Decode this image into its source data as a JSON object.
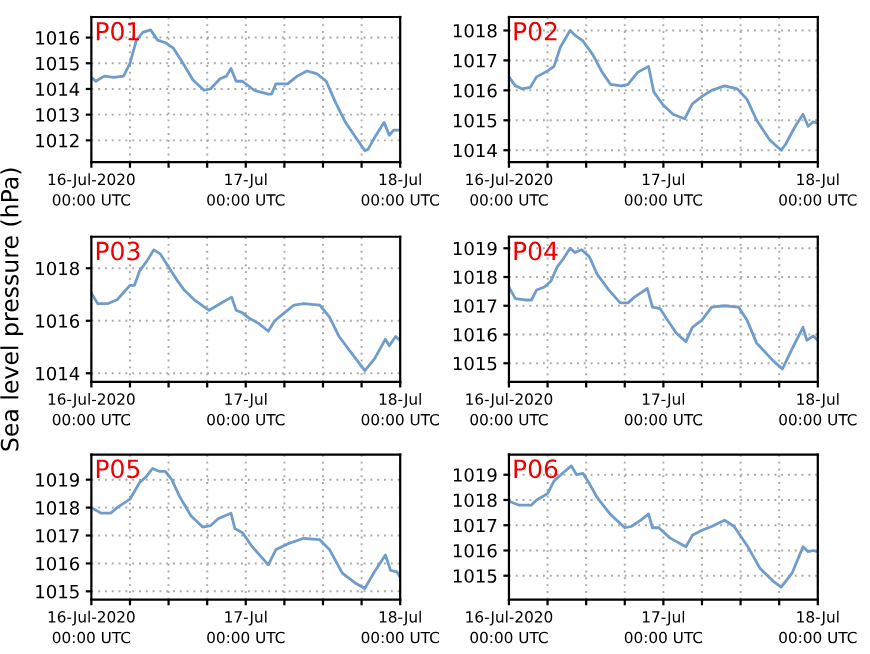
{
  "chart_data": [
    {
      "type": "line",
      "title": "P01",
      "x": [
        "2020-07-16T00:00",
        "2020-07-16T00:42",
        "2020-07-16T02:00",
        "2020-07-16T03:30",
        "2020-07-16T05:00",
        "2020-07-16T06:00",
        "2020-07-16T07:00",
        "2020-07-16T08:00",
        "2020-07-16T09:12",
        "2020-07-16T10:18",
        "2020-07-16T11:30",
        "2020-07-16T12:42",
        "2020-07-16T14:00",
        "2020-07-16T15:48",
        "2020-07-16T17:30",
        "2020-07-16T18:30",
        "2020-07-16T20:00",
        "2020-07-16T21:00",
        "2020-07-16T21:42",
        "2020-07-16T22:30",
        "2020-07-16T23:30",
        "2020-07-17T01:18",
        "2020-07-17T03:30",
        "2020-07-17T04:00",
        "2020-07-17T04:42",
        "2020-07-17T06:30",
        "2020-07-17T08:00",
        "2020-07-17T09:30",
        "2020-07-17T11:00",
        "2020-07-17T12:30",
        "2020-07-17T14:00",
        "2020-07-17T15:30",
        "2020-07-17T17:00",
        "2020-07-17T18:30",
        "2020-07-17T19:00",
        "2020-07-17T20:00",
        "2020-07-17T21:30",
        "2020-07-17T22:18",
        "2020-07-17T23:00",
        "2020-07-18T00:00"
      ],
      "series": [
        {
          "color": "#6f9ccb",
          "values": [
            1014.45,
            1014.3,
            1014.5,
            1014.45,
            1014.5,
            1015.0,
            1015.9,
            1016.2,
            1016.3,
            1015.9,
            1015.8,
            1015.6,
            1015.1,
            1014.35,
            1013.95,
            1014.0,
            1014.4,
            1014.5,
            1014.8,
            1014.3,
            1014.3,
            1013.95,
            1013.8,
            1013.8,
            1014.2,
            1014.2,
            1014.5,
            1014.7,
            1014.6,
            1014.3,
            1013.45,
            1012.7,
            1012.15,
            1011.6,
            1011.65,
            1012.1,
            1012.7,
            1012.2,
            1012.4,
            1012.4
          ]
        }
      ],
      "xlim": [
        "2020-07-16T00:00",
        "2020-07-18T00:00"
      ],
      "xticks": [
        {
          "value": "2020-07-16T00:00",
          "label": "16-Jul-2020\n00:00 UTC"
        },
        {
          "value": "2020-07-16T06:00",
          "label": null
        },
        {
          "value": "2020-07-16T12:00",
          "label": null
        },
        {
          "value": "2020-07-16T18:00",
          "label": null
        },
        {
          "value": "2020-07-17T00:00",
          "label": "17-Jul\n00:00 UTC"
        },
        {
          "value": "2020-07-17T06:00",
          "label": null
        },
        {
          "value": "2020-07-17T12:00",
          "label": null
        },
        {
          "value": "2020-07-17T18:00",
          "label": null
        },
        {
          "value": "2020-07-18T00:00",
          "label": "18-Jul\n00:00 UTC"
        }
      ],
      "ylim": [
        1011.15,
        1016.8
      ],
      "yticks": [
        1012,
        1013,
        1014,
        1015,
        1016
      ],
      "grid": true,
      "line_style": "solid"
    },
    {
      "type": "line",
      "title": "P02",
      "x": [
        "2020-07-16T00:00",
        "2020-07-16T01:00",
        "2020-07-16T02:00",
        "2020-07-16T03:18",
        "2020-07-16T04:18",
        "2020-07-16T06:00",
        "2020-07-16T07:00",
        "2020-07-16T08:00",
        "2020-07-16T09:30",
        "2020-07-16T10:30",
        "2020-07-16T11:30",
        "2020-07-16T13:00",
        "2020-07-16T14:30",
        "2020-07-16T15:48",
        "2020-07-16T17:30",
        "2020-07-16T18:30",
        "2020-07-16T20:00",
        "2020-07-16T21:42",
        "2020-07-16T22:30",
        "2020-07-17T00:00",
        "2020-07-17T01:30",
        "2020-07-17T03:18",
        "2020-07-17T04:30",
        "2020-07-17T06:00",
        "2020-07-17T07:30",
        "2020-07-17T09:30",
        "2020-07-17T11:30",
        "2020-07-17T13:00",
        "2020-07-17T14:30",
        "2020-07-17T16:30",
        "2020-07-17T18:18",
        "2020-07-17T19:00",
        "2020-07-17T20:30",
        "2020-07-17T21:42",
        "2020-07-17T22:30",
        "2020-07-17T23:18",
        "2020-07-18T00:00"
      ],
      "series": [
        {
          "color": "#6f9ccb",
          "values": [
            1016.45,
            1016.15,
            1016.05,
            1016.1,
            1016.45,
            1016.65,
            1016.8,
            1017.45,
            1018.0,
            1017.8,
            1017.65,
            1017.2,
            1016.6,
            1016.2,
            1016.15,
            1016.2,
            1016.6,
            1016.8,
            1015.95,
            1015.5,
            1015.2,
            1015.05,
            1015.55,
            1015.8,
            1016.0,
            1016.15,
            1016.05,
            1015.7,
            1015.0,
            1014.35,
            1014.0,
            1014.2,
            1014.8,
            1015.2,
            1014.8,
            1014.95,
            1014.9
          ]
        }
      ],
      "xlim": [
        "2020-07-16T00:00",
        "2020-07-18T00:00"
      ],
      "xticks": [
        {
          "value": "2020-07-16T00:00",
          "label": "16-Jul-2020\n00:00 UTC"
        },
        {
          "value": "2020-07-16T06:00",
          "label": null
        },
        {
          "value": "2020-07-16T12:00",
          "label": null
        },
        {
          "value": "2020-07-16T18:00",
          "label": null
        },
        {
          "value": "2020-07-17T00:00",
          "label": "17-Jul\n00:00 UTC"
        },
        {
          "value": "2020-07-17T06:00",
          "label": null
        },
        {
          "value": "2020-07-17T12:00",
          "label": null
        },
        {
          "value": "2020-07-17T18:00",
          "label": null
        },
        {
          "value": "2020-07-18T00:00",
          "label": "18-Jul\n00:00 UTC"
        }
      ],
      "ylim": [
        1013.6,
        1018.45
      ],
      "yticks": [
        1014,
        1015,
        1016,
        1017,
        1018
      ],
      "grid": true,
      "line_style": "solid"
    },
    {
      "type": "line",
      "title": "P03",
      "ylabel": "Sea level pressure (hPa)",
      "x": [
        "2020-07-16T00:00",
        "2020-07-16T01:00",
        "2020-07-16T02:30",
        "2020-07-16T04:00",
        "2020-07-16T06:00",
        "2020-07-16T06:42",
        "2020-07-16T07:30",
        "2020-07-16T08:42",
        "2020-07-16T09:42",
        "2020-07-16T10:42",
        "2020-07-16T12:00",
        "2020-07-16T13:18",
        "2020-07-16T14:30",
        "2020-07-16T16:00",
        "2020-07-16T18:18",
        "2020-07-16T20:00",
        "2020-07-16T21:48",
        "2020-07-16T22:30",
        "2020-07-16T23:30",
        "2020-07-17T00:30",
        "2020-07-17T02:00",
        "2020-07-17T03:30",
        "2020-07-17T04:30",
        "2020-07-17T06:00",
        "2020-07-17T07:30",
        "2020-07-17T09:00",
        "2020-07-17T11:30",
        "2020-07-17T13:00",
        "2020-07-17T14:30",
        "2020-07-17T16:30",
        "2020-07-17T18:30",
        "2020-07-17T20:00",
        "2020-07-17T21:42",
        "2020-07-17T22:18",
        "2020-07-17T23:18",
        "2020-07-18T00:00"
      ],
      "series": [
        {
          "color": "#6f9ccb",
          "values": [
            1017.05,
            1016.65,
            1016.65,
            1016.8,
            1017.35,
            1017.35,
            1017.9,
            1018.3,
            1018.7,
            1018.55,
            1018.05,
            1017.55,
            1017.15,
            1016.8,
            1016.4,
            1016.65,
            1016.9,
            1016.4,
            1016.3,
            1016.1,
            1015.9,
            1015.6,
            1016.0,
            1016.3,
            1016.6,
            1016.65,
            1016.6,
            1016.15,
            1015.4,
            1014.75,
            1014.1,
            1014.55,
            1015.3,
            1015.05,
            1015.4,
            1015.25
          ]
        }
      ],
      "xlim": [
        "2020-07-16T00:00",
        "2020-07-18T00:00"
      ],
      "xticks": [
        {
          "value": "2020-07-16T00:00",
          "label": "16-Jul-2020\n00:00 UTC"
        },
        {
          "value": "2020-07-16T06:00",
          "label": null
        },
        {
          "value": "2020-07-16T12:00",
          "label": null
        },
        {
          "value": "2020-07-16T18:00",
          "label": null
        },
        {
          "value": "2020-07-17T00:00",
          "label": "17-Jul\n00:00 UTC"
        },
        {
          "value": "2020-07-17T06:00",
          "label": null
        },
        {
          "value": "2020-07-17T12:00",
          "label": null
        },
        {
          "value": "2020-07-17T18:00",
          "label": null
        },
        {
          "value": "2020-07-18T00:00",
          "label": "18-Jul\n00:00 UTC"
        }
      ],
      "ylim": [
        1013.67,
        1019.2
      ],
      "yticks": [
        1014,
        1016,
        1018
      ],
      "grid": true,
      "line_style": "solid"
    },
    {
      "type": "line",
      "title": "P04",
      "x": [
        "2020-07-16T00:00",
        "2020-07-16T01:00",
        "2020-07-16T02:30",
        "2020-07-16T03:30",
        "2020-07-16T04:18",
        "2020-07-16T05:30",
        "2020-07-16T06:30",
        "2020-07-16T07:30",
        "2020-07-16T08:30",
        "2020-07-16T09:30",
        "2020-07-16T10:18",
        "2020-07-16T11:18",
        "2020-07-16T12:30",
        "2020-07-16T13:42",
        "2020-07-16T15:30",
        "2020-07-16T17:18",
        "2020-07-16T18:30",
        "2020-07-16T19:30",
        "2020-07-16T21:30",
        "2020-07-16T22:18",
        "2020-07-16T23:30",
        "2020-07-17T00:30",
        "2020-07-17T02:00",
        "2020-07-17T03:30",
        "2020-07-17T04:30",
        "2020-07-17T06:00",
        "2020-07-17T07:30",
        "2020-07-17T09:30",
        "2020-07-17T11:42",
        "2020-07-17T13:00",
        "2020-07-17T14:30",
        "2020-07-17T17:00",
        "2020-07-17T18:30",
        "2020-07-17T20:00",
        "2020-07-17T21:42",
        "2020-07-17T22:18",
        "2020-07-17T23:18",
        "2020-07-18T00:00"
      ],
      "series": [
        {
          "color": "#6f9ccb",
          "values": [
            1017.65,
            1017.25,
            1017.2,
            1017.2,
            1017.55,
            1017.65,
            1017.85,
            1018.35,
            1018.65,
            1019.0,
            1018.85,
            1018.95,
            1018.7,
            1018.1,
            1017.55,
            1017.1,
            1017.1,
            1017.3,
            1017.6,
            1016.95,
            1016.9,
            1016.55,
            1016.05,
            1015.75,
            1016.25,
            1016.5,
            1016.95,
            1017.0,
            1016.95,
            1016.5,
            1015.7,
            1015.1,
            1014.8,
            1015.5,
            1016.25,
            1015.8,
            1015.95,
            1015.8
          ]
        }
      ],
      "xlim": [
        "2020-07-16T00:00",
        "2020-07-18T00:00"
      ],
      "xticks": [
        {
          "value": "2020-07-16T00:00",
          "label": "16-Jul-2020\n00:00 UTC"
        },
        {
          "value": "2020-07-16T06:00",
          "label": null
        },
        {
          "value": "2020-07-16T12:00",
          "label": null
        },
        {
          "value": "2020-07-16T18:00",
          "label": null
        },
        {
          "value": "2020-07-17T00:00",
          "label": "17-Jul\n00:00 UTC"
        },
        {
          "value": "2020-07-17T06:00",
          "label": null
        },
        {
          "value": "2020-07-17T12:00",
          "label": null
        },
        {
          "value": "2020-07-17T18:00",
          "label": null
        },
        {
          "value": "2020-07-18T00:00",
          "label": "18-Jul\n00:00 UTC"
        }
      ],
      "ylim": [
        1014.35,
        1019.4
      ],
      "yticks": [
        1015,
        1016,
        1017,
        1018,
        1019
      ],
      "grid": true,
      "line_style": "solid"
    },
    {
      "type": "line",
      "title": "P05",
      "x": [
        "2020-07-16T00:00",
        "2020-07-16T01:30",
        "2020-07-16T03:00",
        "2020-07-16T04:00",
        "2020-07-16T06:00",
        "2020-07-16T07:30",
        "2020-07-16T08:30",
        "2020-07-16T09:30",
        "2020-07-16T10:30",
        "2020-07-16T11:30",
        "2020-07-16T12:30",
        "2020-07-16T13:42",
        "2020-07-16T15:30",
        "2020-07-16T17:18",
        "2020-07-16T18:30",
        "2020-07-16T19:42",
        "2020-07-16T21:42",
        "2020-07-16T22:18",
        "2020-07-16T23:30",
        "2020-07-17T01:00",
        "2020-07-17T03:30",
        "2020-07-17T04:42",
        "2020-07-17T06:30",
        "2020-07-17T09:00",
        "2020-07-17T11:30",
        "2020-07-17T13:00",
        "2020-07-17T15:00",
        "2020-07-17T17:00",
        "2020-07-17T18:30",
        "2020-07-17T20:00",
        "2020-07-17T21:42",
        "2020-07-17T22:30",
        "2020-07-17T23:30",
        "2020-07-18T00:00"
      ],
      "series": [
        {
          "color": "#6f9ccb",
          "values": [
            1018.0,
            1017.8,
            1017.8,
            1018.0,
            1018.3,
            1018.9,
            1019.1,
            1019.4,
            1019.3,
            1019.3,
            1019.0,
            1018.4,
            1017.7,
            1017.3,
            1017.35,
            1017.6,
            1017.8,
            1017.25,
            1017.1,
            1016.6,
            1015.95,
            1016.5,
            1016.7,
            1016.9,
            1016.85,
            1016.5,
            1015.65,
            1015.3,
            1015.1,
            1015.7,
            1016.3,
            1015.75,
            1015.7,
            1015.5
          ]
        }
      ],
      "xlim": [
        "2020-07-16T00:00",
        "2020-07-18T00:00"
      ],
      "xticks": [
        {
          "value": "2020-07-16T00:00",
          "label": "16-Jul-2020\n00:00 UTC"
        },
        {
          "value": "2020-07-16T06:00",
          "label": null
        },
        {
          "value": "2020-07-16T12:00",
          "label": null
        },
        {
          "value": "2020-07-16T18:00",
          "label": null
        },
        {
          "value": "2020-07-17T00:00",
          "label": "17-Jul\n00:00 UTC"
        },
        {
          "value": "2020-07-17T06:00",
          "label": null
        },
        {
          "value": "2020-07-17T12:00",
          "label": null
        },
        {
          "value": "2020-07-17T18:00",
          "label": null
        },
        {
          "value": "2020-07-18T00:00",
          "label": "18-Jul\n00:00 UTC"
        }
      ],
      "ylim": [
        1014.7,
        1019.9
      ],
      "yticks": [
        1015,
        1016,
        1017,
        1018,
        1019
      ],
      "grid": true,
      "line_style": "solid"
    },
    {
      "type": "line",
      "title": "P06",
      "x": [
        "2020-07-16T00:00",
        "2020-07-16T01:30",
        "2020-07-16T03:30",
        "2020-07-16T04:18",
        "2020-07-16T06:00",
        "2020-07-16T07:00",
        "2020-07-16T08:30",
        "2020-07-16T09:42",
        "2020-07-16T10:30",
        "2020-07-16T11:30",
        "2020-07-16T12:30",
        "2020-07-16T13:42",
        "2020-07-16T15:42",
        "2020-07-16T18:00",
        "2020-07-16T19:00",
        "2020-07-16T20:30",
        "2020-07-16T21:42",
        "2020-07-16T22:18",
        "2020-07-16T23:18",
        "2020-07-17T01:00",
        "2020-07-17T03:30",
        "2020-07-17T04:30",
        "2020-07-17T06:00",
        "2020-07-17T07:30",
        "2020-07-17T09:30",
        "2020-07-17T11:00",
        "2020-07-17T13:00",
        "2020-07-17T15:00",
        "2020-07-17T17:00",
        "2020-07-17T18:18",
        "2020-07-17T20:00",
        "2020-07-17T21:42",
        "2020-07-17T22:30",
        "2020-07-17T23:18",
        "2020-07-18T00:00"
      ],
      "series": [
        {
          "color": "#6f9ccb",
          "values": [
            1017.95,
            1017.8,
            1017.8,
            1018.0,
            1018.25,
            1018.75,
            1019.1,
            1019.35,
            1019.0,
            1019.05,
            1018.65,
            1018.1,
            1017.45,
            1016.9,
            1016.95,
            1017.2,
            1017.45,
            1016.9,
            1016.9,
            1016.5,
            1016.15,
            1016.6,
            1016.8,
            1016.95,
            1017.2,
            1016.95,
            1016.2,
            1015.3,
            1014.8,
            1014.55,
            1015.1,
            1016.15,
            1015.95,
            1016.0,
            1015.95
          ]
        }
      ],
      "xlim": [
        "2020-07-16T00:00",
        "2020-07-18T00:00"
      ],
      "xticks": [
        {
          "value": "2020-07-16T00:00",
          "label": "16-Jul-2020\n00:00 UTC"
        },
        {
          "value": "2020-07-16T06:00",
          "label": null
        },
        {
          "value": "2020-07-16T12:00",
          "label": null
        },
        {
          "value": "2020-07-16T18:00",
          "label": null
        },
        {
          "value": "2020-07-17T00:00",
          "label": "17-Jul\n00:00 UTC"
        },
        {
          "value": "2020-07-17T06:00",
          "label": null
        },
        {
          "value": "2020-07-17T12:00",
          "label": null
        },
        {
          "value": "2020-07-17T18:00",
          "label": null
        },
        {
          "value": "2020-07-18T00:00",
          "label": "18-Jul\n00:00 UTC"
        }
      ],
      "ylim": [
        1014.05,
        1019.8
      ],
      "yticks": [
        1015,
        1016,
        1017,
        1018,
        1019
      ],
      "grid": true,
      "line_style": "solid"
    }
  ]
}
